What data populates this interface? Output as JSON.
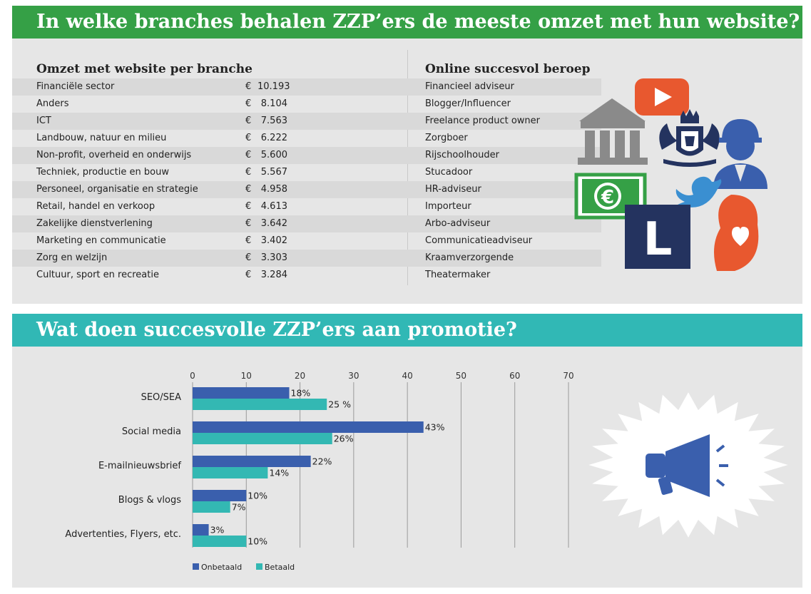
{
  "section1": {
    "title": "In welke branches behalen ZZP’ers de meeste omzet met hun website?",
    "left_heading": "Omzet met website per branche",
    "right_heading": "Online succesvol beroep",
    "currency": "€",
    "branches": [
      {
        "label": "Financiële sector",
        "amount": "10.193"
      },
      {
        "label": "Anders",
        "amount": "8.104"
      },
      {
        "label": "ICT",
        "amount": "7.563"
      },
      {
        "label": "Landbouw, natuur en milieu",
        "amount": "6.222"
      },
      {
        "label": "Non-profit, overheid en onderwijs",
        "amount": "5.600"
      },
      {
        "label": "Techniek, productie en bouw",
        "amount": "5.567"
      },
      {
        "label": "Personeel, organisatie en strategie",
        "amount": "4.958"
      },
      {
        "label": "Retail, handel en verkoop",
        "amount": "4.613"
      },
      {
        "label": "Zakelijke dienstverlening",
        "amount": "3.642"
      },
      {
        "label": "Marketing en communicatie",
        "amount": "3.402"
      },
      {
        "label": "Zorg en welzijn",
        "amount": "3.303"
      },
      {
        "label": "Cultuur, sport en recreatie",
        "amount": "3.284"
      }
    ],
    "professions": [
      "Financieel adviseur",
      "Blogger/Influencer",
      "Freelance product owner",
      "Zorgboer",
      "Rijschoolhouder",
      "Stucadoor",
      "HR-adviseur",
      "Importeur",
      "Arbo-adviseur",
      "Communicatieadviseur",
      "Kraamverzorgende",
      "Theatermaker"
    ],
    "illustration": {
      "icons": [
        "bank-icon",
        "youtube-play-icon",
        "royal-coat-of-arms-icon",
        "construction-worker-icon",
        "euro-banknote-icon",
        "twitter-bird-icon",
        "learner-driver-l-plate-icon",
        "pregnant-heart-icon"
      ],
      "l_plate_text": "L",
      "euro_symbol": "€"
    }
  },
  "section2": {
    "title": "Wat doen succesvolle ZZP’ers aan promotie?",
    "megaphone_icon": "megaphone-icon"
  },
  "chart_data": {
    "type": "bar",
    "orientation": "horizontal",
    "categories": [
      "SEO/SEA",
      "Social media",
      "E-mailnieuwsbrief",
      "Blogs & vlogs",
      "Advertenties, Flyers, etc."
    ],
    "series": [
      {
        "name": "Onbetaald",
        "color": "#3a5fad",
        "values": [
          18,
          43,
          22,
          10,
          3
        ],
        "labels": [
          "18%",
          "43%",
          "22%",
          "10%",
          "3%"
        ]
      },
      {
        "name": "Betaald",
        "color": "#33b8b3",
        "values": [
          25,
          26,
          14,
          7,
          10
        ],
        "labels": [
          "25 %",
          "26%",
          "14%",
          "7%",
          "10%"
        ]
      }
    ],
    "xlim": [
      0,
      70
    ],
    "xticks": [
      "0",
      "10",
      "20",
      "30",
      "40",
      "50",
      "60",
      "70"
    ],
    "grid": true,
    "legend_position": "bottom-left"
  },
  "colors": {
    "green": "#35a046",
    "teal": "#31b8b5",
    "panel_gray": "#e6e6e6",
    "navy": "#24335f",
    "orange": "#e8582f",
    "blue": "#3a5fad"
  }
}
